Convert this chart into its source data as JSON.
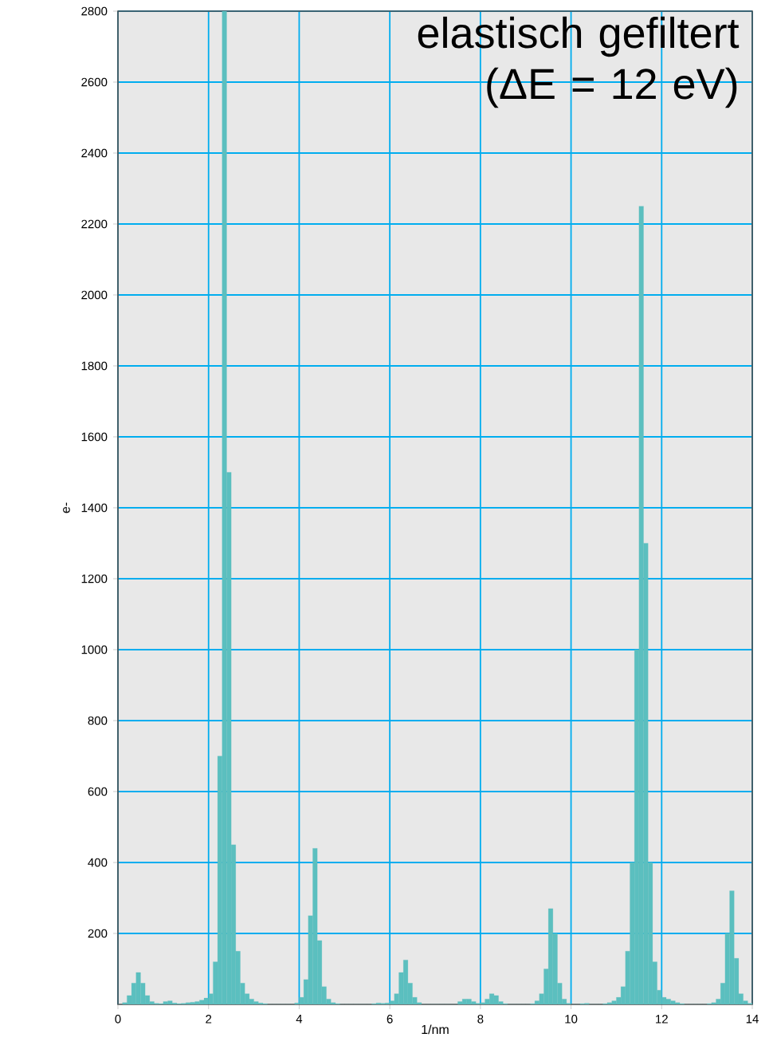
{
  "chart_data": {
    "type": "histogram",
    "title": "elastisch gefiltert (ΔE = 12 eV)",
    "xlabel": "1/nm",
    "ylabel": "e-",
    "bins": [
      0,
      0.1,
      0.2,
      0.3,
      0.4,
      0.5,
      0.6,
      0.7,
      0.8,
      0.9,
      1,
      1.1,
      1.2,
      1.3,
      1.4,
      1.5,
      1.6,
      1.7,
      1.8,
      1.9,
      2,
      2.1,
      2.2,
      2.3,
      2.4,
      2.5,
      2.6,
      2.7,
      2.8,
      2.9,
      3,
      3.1,
      3.2,
      3.3,
      3.4,
      3.5,
      3.6,
      3.7,
      3.8,
      3.9,
      4,
      4.1,
      4.2,
      4.3,
      4.4,
      4.5,
      4.6,
      4.7,
      4.8,
      4.9,
      5,
      5.1,
      5.2,
      5.3,
      5.4,
      5.5,
      5.6,
      5.7,
      5.8,
      5.9,
      6,
      6.1,
      6.2,
      6.3,
      6.4,
      6.5,
      6.6,
      6.7,
      6.8,
      6.9,
      7,
      7.1,
      7.2,
      7.3,
      7.4,
      7.5,
      7.6,
      7.7,
      7.8,
      7.9,
      8,
      8.1,
      8.2,
      8.3,
      8.4,
      8.5,
      8.6,
      8.7,
      8.8,
      8.9,
      9,
      9.1,
      9.2,
      9.3,
      9.4,
      9.5,
      9.6,
      9.7,
      9.8,
      9.9,
      10,
      10.1,
      10.2,
      10.3,
      10.4,
      10.5,
      10.6,
      10.7,
      10.8,
      10.9,
      11,
      11.1,
      11.2,
      11.3,
      11.4,
      11.5,
      11.6,
      11.7,
      11.8,
      11.9,
      12,
      12.1,
      12.2,
      12.3,
      12.4,
      12.5,
      12.6,
      12.7,
      12.8,
      12.9,
      13,
      13.1,
      13.2,
      13.3,
      13.4,
      13.5,
      13.6,
      13.7,
      13.8,
      13.9,
      14
    ],
    "values": [
      0,
      5,
      25,
      60,
      90,
      60,
      25,
      8,
      3,
      2,
      8,
      10,
      4,
      2,
      3,
      5,
      6,
      8,
      12,
      18,
      30,
      120,
      700,
      2800,
      1500,
      450,
      150,
      60,
      30,
      15,
      8,
      4,
      2,
      0,
      0,
      0,
      0,
      0,
      0,
      4,
      20,
      70,
      250,
      440,
      180,
      50,
      15,
      5,
      2,
      0,
      0,
      0,
      0,
      0,
      0,
      0,
      2,
      4,
      3,
      4,
      10,
      30,
      90,
      125,
      60,
      20,
      5,
      0,
      0,
      0,
      0,
      0,
      0,
      0,
      0,
      8,
      15,
      15,
      8,
      3,
      5,
      15,
      30,
      25,
      8,
      2,
      0,
      0,
      0,
      0,
      0,
      2,
      10,
      30,
      100,
      270,
      200,
      60,
      15,
      3,
      0,
      0,
      2,
      3,
      0,
      0,
      0,
      2,
      5,
      10,
      20,
      50,
      150,
      400,
      1000,
      2250,
      1300,
      400,
      120,
      40,
      20,
      15,
      10,
      5,
      2,
      0,
      0,
      0,
      0,
      0,
      2,
      5,
      15,
      60,
      200,
      320,
      130,
      30,
      10,
      3
    ],
    "color": "#5bbfbf",
    "xlim": [
      0,
      14
    ],
    "xticks": [
      0,
      2,
      4,
      6,
      8,
      10,
      12,
      14
    ],
    "ylim": [
      0,
      2800
    ],
    "yticks": [
      200,
      400,
      600,
      800,
      1000,
      1200,
      1400,
      1600,
      1800,
      2000,
      2200,
      2400,
      2600,
      2800
    ],
    "grid": true
  }
}
